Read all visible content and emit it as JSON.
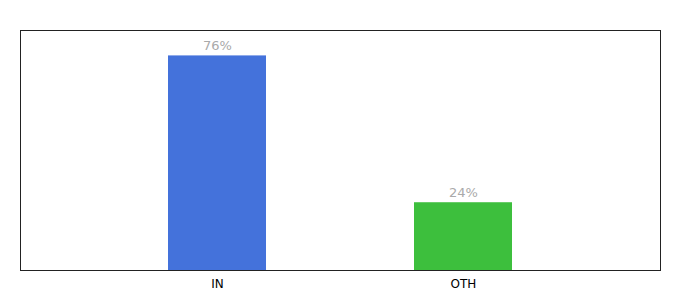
{
  "chart_data": {
    "type": "bar",
    "categories": [
      "IN",
      "OTH"
    ],
    "values": [
      76,
      24
    ],
    "value_labels": [
      "76%",
      "24%"
    ],
    "colors": [
      "#4472db",
      "#3dbf3d"
    ],
    "ylim": [
      0,
      85
    ],
    "data_labels": true,
    "tick_labels": "x",
    "grid": false
  }
}
